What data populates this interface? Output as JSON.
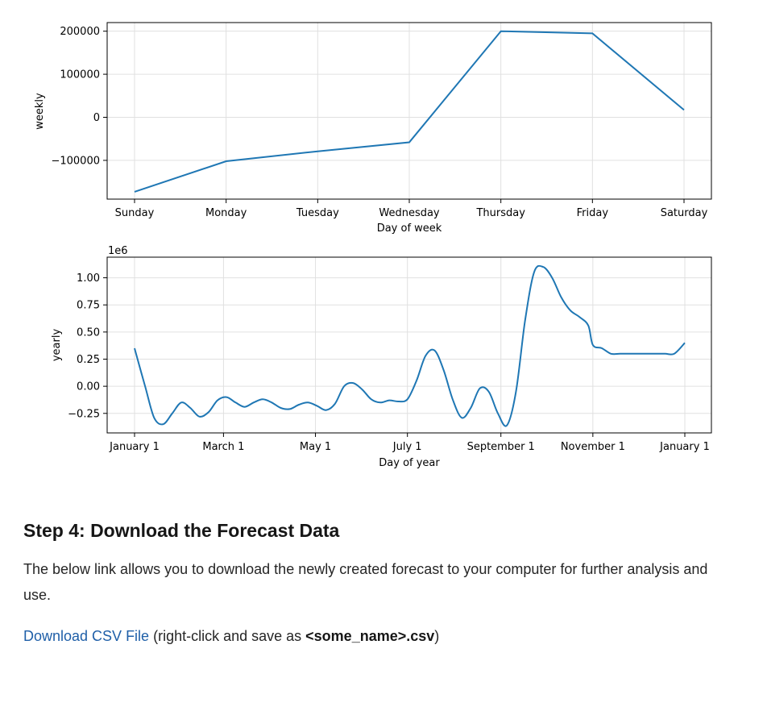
{
  "chart_data": [
    {
      "type": "line",
      "xlabel": "Day of week",
      "ylabel": "weekly",
      "categories": [
        "Sunday",
        "Monday",
        "Tuesday",
        "Wednesday",
        "Thursday",
        "Friday",
        "Saturday"
      ],
      "values": [
        -173000,
        -102000,
        -79000,
        -58000,
        200000,
        195000,
        17000
      ],
      "yticks": [
        -100000,
        0,
        100000,
        200000
      ],
      "ytick_labels": [
        "−100000",
        "0",
        "100000",
        "200000"
      ],
      "ylim": [
        -190000,
        220000
      ],
      "grid": true,
      "line_color": "#1f77b4"
    },
    {
      "type": "line",
      "xlabel": "Day of year",
      "ylabel": "yearly",
      "offset_label": "1e6",
      "x_tick_labels": [
        "January 1",
        "March 1",
        "May 1",
        "July 1",
        "September 1",
        "November 1",
        "January 1"
      ],
      "x_tick_days": [
        0,
        59,
        120,
        181,
        243,
        304,
        365
      ],
      "yticks": [
        -0.25,
        0,
        0.25,
        0.5,
        0.75,
        1.0
      ],
      "ytick_labels": [
        "−0.25",
        "0.00",
        "0.25",
        "0.50",
        "0.75",
        "1.00"
      ],
      "ylim": [
        -0.43,
        1.19
      ],
      "grid": true,
      "line_color": "#1f77b4",
      "x": [
        0,
        7,
        13,
        19,
        25,
        31,
        37,
        43,
        49,
        55,
        61,
        67,
        73,
        79,
        85,
        91,
        97,
        103,
        109,
        115,
        121,
        127,
        133,
        139,
        145,
        151,
        157,
        163,
        169,
        175,
        181,
        187,
        193,
        199,
        205,
        211,
        217,
        223,
        229,
        235,
        241,
        247,
        253,
        259,
        265,
        271,
        277,
        283,
        289,
        295,
        301,
        304,
        310,
        316,
        322,
        328,
        334,
        340,
        346,
        352,
        358,
        365
      ],
      "y": [
        0.35,
        0.0,
        -0.29,
        -0.35,
        -0.25,
        -0.15,
        -0.2,
        -0.28,
        -0.24,
        -0.13,
        -0.1,
        -0.15,
        -0.19,
        -0.15,
        -0.12,
        -0.15,
        -0.2,
        -0.21,
        -0.17,
        -0.15,
        -0.18,
        -0.22,
        -0.16,
        0.0,
        0.03,
        -0.03,
        -0.12,
        -0.15,
        -0.13,
        -0.14,
        -0.12,
        0.05,
        0.28,
        0.33,
        0.15,
        -0.12,
        -0.29,
        -0.2,
        -0.02,
        -0.05,
        -0.25,
        -0.36,
        -0.05,
        0.6,
        1.05,
        1.1,
        1.0,
        0.82,
        0.7,
        0.64,
        0.56,
        0.38,
        0.35,
        0.3,
        0.3,
        0.3,
        0.3,
        0.3,
        0.3,
        0.3,
        0.3,
        0.4
      ]
    }
  ],
  "section": {
    "heading": "Step 4: Download the Forecast Data",
    "paragraph": "The below link allows you to download the newly created forecast to your computer for further analysis and use.",
    "link_text": "Download CSV File",
    "note_prefix": " (right-click and save as ",
    "note_filename": "<some_name>.csv",
    "note_suffix": ")"
  }
}
